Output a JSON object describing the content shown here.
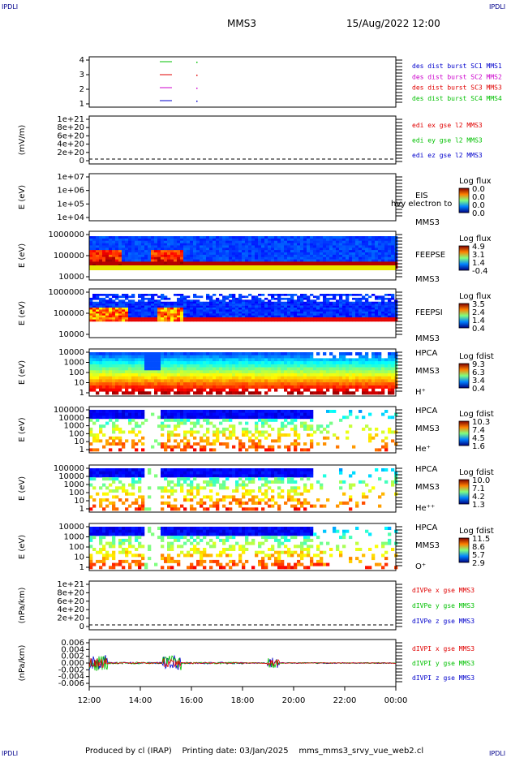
{
  "corners": {
    "tl": "IPDLI",
    "tr": "IPDLI",
    "bl": "IPDLI",
    "br": "IPDLI"
  },
  "header": {
    "spacecraft": "MMS3",
    "datetime": "15/Aug/2022 12:00"
  },
  "footer": {
    "produced_by": "Produced by cl (IRAP)",
    "printing_date": "Printing date: 03/Jan/2025",
    "file": "mms_mms3_srvy_vue_web2.cl"
  },
  "colors": {
    "red": "#e00000",
    "green": "#00c000",
    "magenta": "#cc00cc",
    "blue": "#0000cc",
    "navy": "#00008b"
  },
  "chart_data": {
    "type": "multi-panel time series and spectrograms",
    "x_ticks": [
      "12:00",
      "14:00",
      "16:00",
      "18:00",
      "20:00",
      "22:00",
      "00:00"
    ],
    "panels": [
      {
        "id": "burst",
        "yticks": [
          "4",
          "3",
          "2",
          "1"
        ],
        "legend": [
          {
            "text": "des dist burst SC1 MMS1",
            "color": "#0000cc"
          },
          {
            "text": "des dist burst SC2 MMS2",
            "color": "#cc00cc"
          },
          {
            "text": "des dist burst SC3 MMS3",
            "color": "#e00000"
          },
          {
            "text": "des dist burst SC4 MMS4",
            "color": "#00c000"
          }
        ]
      },
      {
        "id": "edi",
        "ylabel": "(mV/m)",
        "yticks": [
          "1e+21",
          "8e+20",
          "6e+20",
          "4e+20",
          "2e+20",
          "0"
        ],
        "legend": [
          {
            "text": "edi ex gse l2 MMS3",
            "color": "#e00000"
          },
          {
            "text": "edi ey gse l2 MMS3",
            "color": "#00c000"
          },
          {
            "text": "edi ez gse l2 MMS3",
            "color": "#0000cc"
          }
        ]
      },
      {
        "id": "eis",
        "ylabel": "E (eV)",
        "yticks": [
          "1e+07",
          "1e+06",
          "1e+05",
          "1e+04"
        ],
        "side": [
          "EIS",
          "MMS3"
        ],
        "overlay": "hvy electron to",
        "cbar": {
          "title": "Log flux",
          "ticks": [
            "0.0",
            "0.0",
            "0.0",
            "0.0"
          ]
        }
      },
      {
        "id": "feepse",
        "ylabel": "E (eV)",
        "yticks": [
          "1000000",
          "100000",
          "10000"
        ],
        "side": [
          "FEEPSE",
          "MMS3"
        ],
        "cbar": {
          "title": "Log flux",
          "ticks": [
            "4.9",
            "3.1",
            "1.4",
            "-0.4"
          ]
        }
      },
      {
        "id": "feepsi",
        "ylabel": "E (eV)",
        "yticks": [
          "1000000",
          "100000",
          "10000"
        ],
        "side": [
          "FEEPSI",
          "MMS3"
        ],
        "cbar": {
          "title": "Log flux",
          "ticks": [
            "3.5",
            "2.4",
            "1.4",
            "0.4"
          ]
        }
      },
      {
        "id": "hpca_h",
        "ylabel": "E (eV)",
        "yticks": [
          "10000",
          "1000",
          "100",
          "10",
          "1"
        ],
        "side": [
          "HPCA",
          "MMS3",
          "H⁺"
        ],
        "cbar": {
          "title": "Log fdist",
          "ticks": [
            "9.3",
            "6.3",
            "3.4",
            "0.4"
          ]
        }
      },
      {
        "id": "hpca_he",
        "ylabel": "E (eV)",
        "yticks": [
          "100000",
          "10000",
          "1000",
          "100",
          "10",
          "1"
        ],
        "side": [
          "HPCA",
          "MMS3",
          "He⁺"
        ],
        "cbar": {
          "title": "Log fdist",
          "ticks": [
            "10.3",
            "7.4",
            "4.5",
            "1.6"
          ]
        }
      },
      {
        "id": "hpca_hepp",
        "ylabel": "E (eV)",
        "yticks": [
          "100000",
          "10000",
          "1000",
          "100",
          "10",
          "1"
        ],
        "side": [
          "HPCA",
          "MMS3",
          "He⁺⁺"
        ],
        "cbar": {
          "title": "Log fdist",
          "ticks": [
            "10.0",
            "7.1",
            "4.2",
            "1.3"
          ]
        }
      },
      {
        "id": "hpca_o",
        "ylabel": "E (eV)",
        "yticks": [
          "10000",
          "1000",
          "100",
          "10",
          "1"
        ],
        "side": [
          "HPCA",
          "MMS3",
          "O⁺"
        ],
        "cbar": {
          "title": "Log fdist",
          "ticks": [
            "11.5",
            "8.6",
            "5.7",
            "2.9"
          ]
        }
      },
      {
        "id": "divpe",
        "ylabel": "(nPa/km)",
        "yticks": [
          "1e+21",
          "8e+20",
          "6e+20",
          "4e+20",
          "2e+20",
          "0"
        ],
        "legend": [
          {
            "text": "dIVPe x gse MMS3",
            "color": "#e00000"
          },
          {
            "text": "dIVPe y gse MMS3",
            "color": "#00c000"
          },
          {
            "text": "dIVPe z gse MMS3",
            "color": "#0000cc"
          }
        ]
      },
      {
        "id": "divpi",
        "ylabel": "(nPa/km)",
        "yticks": [
          "0.006",
          "0.004",
          "0.002",
          "0.000",
          "-0.002",
          "-0.004",
          "-0.006"
        ],
        "legend": [
          {
            "text": "dIVPI x gse MMS3",
            "color": "#e00000"
          },
          {
            "text": "dIVPI y gse MMS3",
            "color": "#00c000"
          },
          {
            "text": "dIVPI z gse MMS3",
            "color": "#0000cc"
          }
        ]
      }
    ]
  }
}
